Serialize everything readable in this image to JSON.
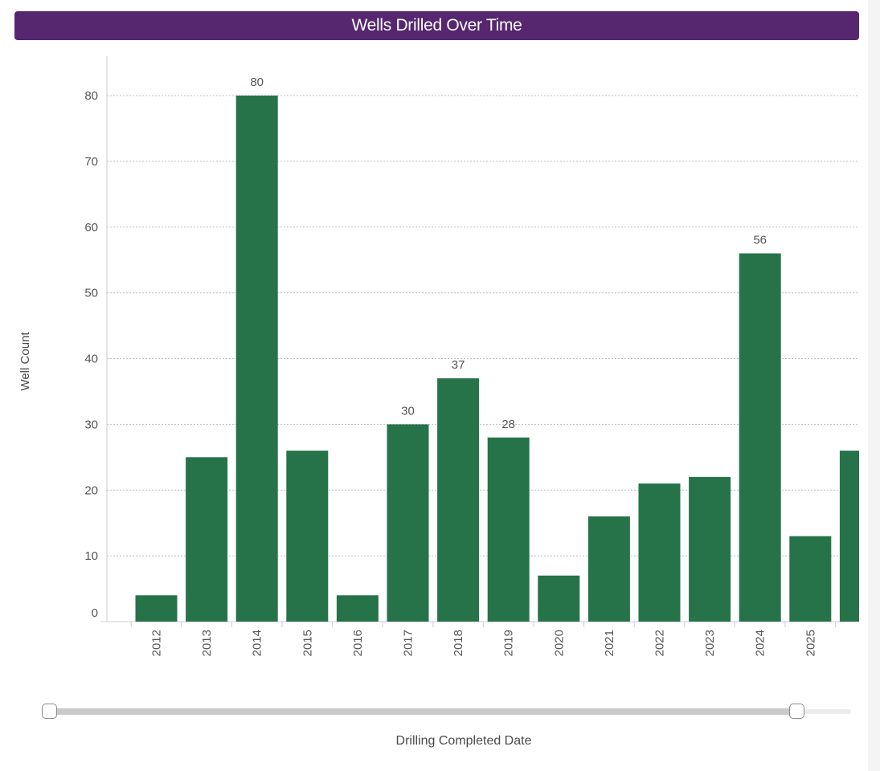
{
  "colors": {
    "title_bg": "#56266f",
    "bar": "#26734a",
    "grid": "#bfbfbf",
    "axis_text": "#555555"
  },
  "slider": {
    "start_fraction": 0.0,
    "end_fraction": 1.0
  },
  "chart_data": {
    "type": "bar",
    "title": "Wells Drilled Over Time",
    "xlabel": "Drilling Completed Date",
    "ylabel": "Well Count",
    "ylim": [
      0,
      86
    ],
    "yticks": [
      0,
      10,
      20,
      30,
      40,
      50,
      60,
      70,
      80
    ],
    "grid": true,
    "categories": [
      "2012",
      "2013",
      "2014",
      "2015",
      "2016",
      "2017",
      "2018",
      "2019",
      "2020",
      "2021",
      "2022",
      "2023",
      "2024",
      "2025",
      ""
    ],
    "values": [
      4,
      25,
      80,
      26,
      4,
      30,
      37,
      28,
      7,
      16,
      21,
      22,
      56,
      13,
      26
    ],
    "data_labels": {
      "2014": "80",
      "2017": "30",
      "2018": "37",
      "2019": "28",
      "2024": "56"
    }
  }
}
